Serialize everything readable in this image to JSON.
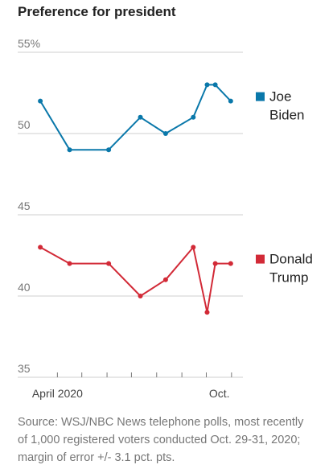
{
  "title": "Preference for president",
  "note": "Source: WSJ/NBC News telephone polls, most recently of 1,000 registered voters conducted Oct. 29-31, 2020; margin of error +/- 3.1 pct. pts.",
  "chart_data": {
    "type": "line",
    "title": "Preference for president",
    "xlabel": "",
    "ylabel": "",
    "ylim": [
      35,
      55
    ],
    "yticks": [
      {
        "value": 55,
        "label": "55%"
      },
      {
        "value": 50,
        "label": "50"
      },
      {
        "value": 45,
        "label": "45"
      },
      {
        "value": 40,
        "label": "40"
      },
      {
        "value": 35,
        "label": "35"
      }
    ],
    "x": [
      "2020-03-11",
      "2020-04-16",
      "2020-06-03",
      "2020-07-12",
      "2020-08-12",
      "2020-09-15",
      "2020-10-02",
      "2020-10-12",
      "2020-10-31"
    ],
    "xlim": [
      "2020-03-01",
      "2020-11-15"
    ],
    "xtick_marks": [
      "2020-04-01",
      "2020-05-01",
      "2020-06-01",
      "2020-07-01",
      "2020-08-01",
      "2020-09-01",
      "2020-10-01",
      "2020-11-01"
    ],
    "xtick_labels": [
      {
        "date": "2020-04-01",
        "label": "April 2020"
      },
      {
        "date": "2020-10-17",
        "label": "Oct."
      }
    ],
    "grid": "horizontal",
    "legend_position": "right",
    "series": [
      {
        "name": "Joe Biden",
        "color": "#0a78aa",
        "values": [
          52,
          49,
          49,
          51,
          50,
          51,
          53,
          53,
          52
        ]
      },
      {
        "name": "Donald Trump",
        "color": "#d22a37",
        "values": [
          43,
          42,
          42,
          40,
          41,
          43,
          39,
          42,
          42
        ]
      }
    ],
    "legend_labels": [
      {
        "series": 0,
        "lines": [
          "Joe",
          "Biden"
        ]
      },
      {
        "series": 1,
        "lines": [
          "Donald",
          "Trump"
        ]
      }
    ]
  }
}
